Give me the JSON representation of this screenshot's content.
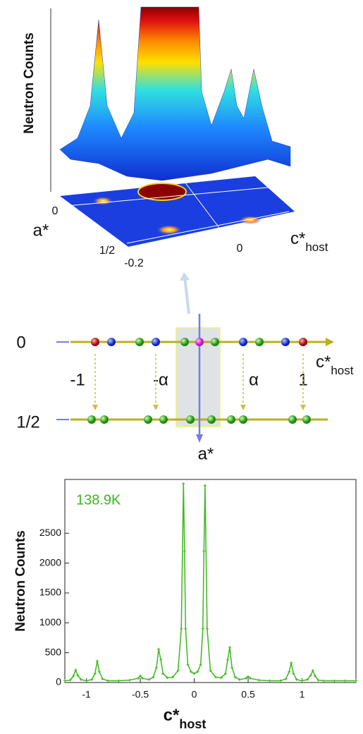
{
  "chart_data": [
    {
      "type": "surface",
      "ylabel": "Neutron Counts",
      "alabel": "a*",
      "ateks": null,
      "aticks": [
        0,
        {
          "value": 0.5,
          "label": "1/2"
        }
      ],
      "clabel": "c*",
      "clabel_sub": "host",
      "cticks": [
        -0.2,
        0
      ]
    },
    {
      "type": "line",
      "annotation": "138.9K",
      "xlabel": "c*",
      "xlabel_sub": "host",
      "ylabel": "Neutron Counts",
      "xlim": [
        -1.2,
        1.5
      ],
      "ylim": [
        0,
        3400
      ],
      "xticks": [
        -1,
        -0.5,
        0,
        0.5,
        1
      ],
      "yticks": [
        0,
        500,
        1000,
        1500,
        2000,
        2500
      ],
      "series": [
        {
          "name": "138.9K",
          "color": "#3cb81c",
          "x": [
            -1.2,
            -1.15,
            -1.12,
            -1.1,
            -1.08,
            -1.05,
            -1.0,
            -0.95,
            -0.92,
            -0.9,
            -0.88,
            -0.85,
            -0.8,
            -0.7,
            -0.6,
            -0.52,
            -0.5,
            -0.48,
            -0.42,
            -0.38,
            -0.35,
            -0.33,
            -0.31,
            -0.29,
            -0.25,
            -0.2,
            -0.15,
            -0.12,
            -0.1,
            -0.09,
            -0.08,
            -0.06,
            -0.03,
            0,
            0.03,
            0.06,
            0.08,
            0.09,
            0.1,
            0.12,
            0.15,
            0.2,
            0.25,
            0.29,
            0.31,
            0.33,
            0.35,
            0.38,
            0.42,
            0.48,
            0.5,
            0.52,
            0.6,
            0.7,
            0.8,
            0.85,
            0.88,
            0.9,
            0.92,
            0.95,
            1.0,
            1.05,
            1.08,
            1.1,
            1.12,
            1.15,
            1.2,
            1.3,
            1.4,
            1.5
          ],
          "values": [
            30,
            40,
            110,
            210,
            120,
            50,
            30,
            50,
            150,
            360,
            180,
            60,
            30,
            30,
            40,
            70,
            110,
            70,
            50,
            90,
            250,
            560,
            380,
            150,
            80,
            90,
            200,
            900,
            3330,
            2200,
            900,
            300,
            180,
            150,
            180,
            300,
            900,
            2200,
            3300,
            900,
            200,
            90,
            80,
            150,
            380,
            590,
            250,
            90,
            50,
            70,
            100,
            70,
            40,
            30,
            30,
            60,
            180,
            330,
            150,
            50,
            30,
            50,
            120,
            200,
            110,
            40,
            30,
            30,
            30,
            30
          ]
        }
      ]
    }
  ],
  "diagram": {
    "row_labels": [
      "0",
      "1/2"
    ],
    "order_labels": [
      "-1",
      "-α",
      "α",
      "1"
    ],
    "axis_h": "c*",
    "axis_h_sub": "host",
    "axis_v": "a*"
  }
}
